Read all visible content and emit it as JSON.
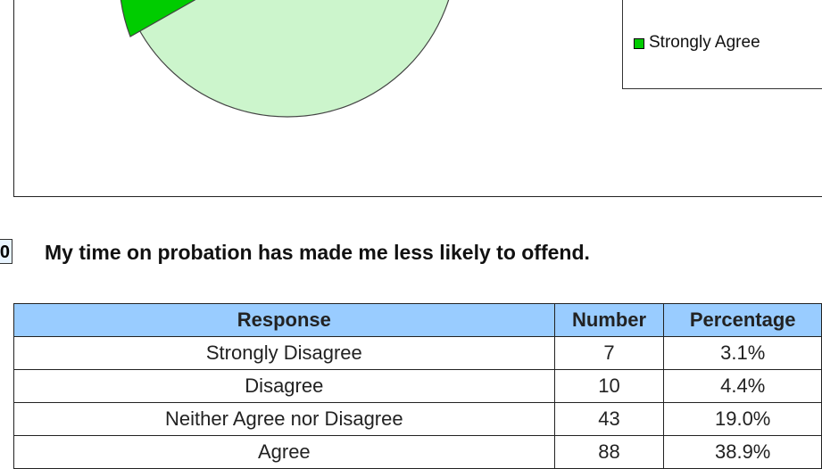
{
  "legend": {
    "label": "Strongly Agree"
  },
  "question": {
    "number": "0",
    "text": "My time on probation has made me less likely to offend."
  },
  "table": {
    "header": [
      "Response",
      "Number",
      "Percentage"
    ],
    "rows": [
      [
        "Strongly Disagree",
        "7",
        "3.1%"
      ],
      [
        "Disagree",
        "10",
        "4.4%"
      ],
      [
        "Neither Agree nor Disagree",
        "43",
        "19.0%"
      ],
      [
        "Agree",
        "88",
        "38.9%"
      ]
    ]
  }
}
